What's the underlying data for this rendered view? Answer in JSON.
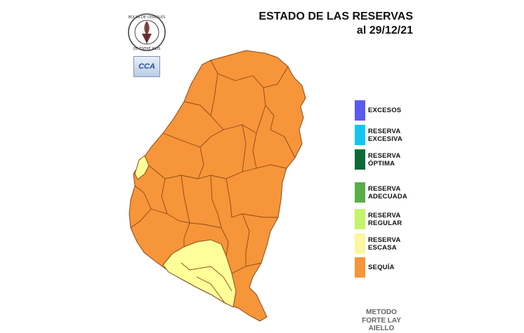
{
  "header": {
    "title": "ESTADO DE LAS RESERVAS",
    "date": "al 29/12/21"
  },
  "logos": {
    "seal_text": "BOLSA DE CEREALES DE ENTRE RÍOS",
    "cca_text": "CCA"
  },
  "colors": {
    "sequia": "#f7953a",
    "escasa": "#ffff99",
    "border": "#8a4a16",
    "excesos": "#5a5af0",
    "reserva_excesiva": "#13c6f2",
    "reserva_optima": "#0b6a35",
    "reserva_adecuada": "#5aae47",
    "reserva_regular": "#c4f56a"
  },
  "legend": {
    "items": [
      {
        "id": "excesos",
        "line1": "EXCESOS",
        "line2": "",
        "color": "#5a5af0"
      },
      {
        "id": "reserva-excesiva",
        "line1": "RESERVA",
        "line2": "EXCESIVA",
        "color": "#13c6f2"
      },
      {
        "id": "reserva-optima",
        "line1": "RESERVA",
        "line2": "ÓPTIMA",
        "color": "#0b6a35"
      },
      {
        "id": "reserva-adecuada",
        "line1": "RESERVA",
        "line2": "ADECUADA",
        "color": "#5aae47"
      },
      {
        "id": "reserva-regular",
        "line1": "RESERVA",
        "line2": "REGULAR",
        "color": "#c4f56a"
      },
      {
        "id": "reserva-escasa",
        "line1": "RESERVA",
        "line2": "ESCASA",
        "color": "#fdf5a0"
      },
      {
        "id": "sequia",
        "line1": "SEQUÍA",
        "line2": "",
        "color": "#f7953a"
      }
    ]
  },
  "method": {
    "line1": "METODO",
    "line2": "FORTE LAY",
    "line3": "AIELLO"
  }
}
